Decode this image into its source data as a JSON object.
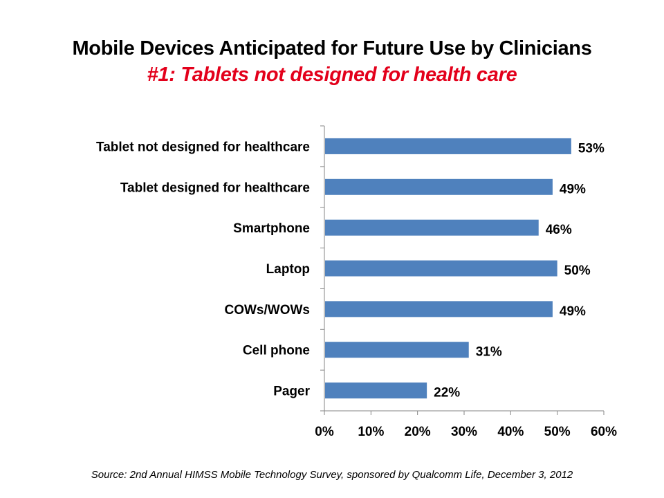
{
  "title": "Mobile Devices Anticipated for Future Use by Clinicians",
  "subtitle": "#1: Tablets not designed for health care",
  "source": "Source: 2nd Annual HIMSS Mobile Technology Survey, sponsored by Qualcomm Life, December 3, 2012",
  "colors": {
    "bar": "#4f81bd",
    "subtitle": "#e3001b",
    "axis": "#868686"
  },
  "chart_data": {
    "type": "bar",
    "orientation": "horizontal",
    "title": "Mobile Devices Anticipated for Future Use by Clinicians",
    "subtitle": "#1: Tablets not designed for health care",
    "categories": [
      "Tablet not designed for healthcare",
      "Tablet designed for healthcare",
      "Smartphone",
      "Laptop",
      "COWs/WOWs",
      "Cell phone",
      "Pager"
    ],
    "values": [
      53,
      49,
      46,
      50,
      49,
      31,
      22
    ],
    "data_labels": [
      "53%",
      "49%",
      "46%",
      "50%",
      "49%",
      "31%",
      "22%"
    ],
    "xlabel": "",
    "ylabel": "",
    "xlim": [
      0,
      60
    ],
    "xticks": [
      "0%",
      "10%",
      "20%",
      "30%",
      "40%",
      "50%",
      "60%"
    ],
    "grid": false,
    "legend": "none"
  }
}
